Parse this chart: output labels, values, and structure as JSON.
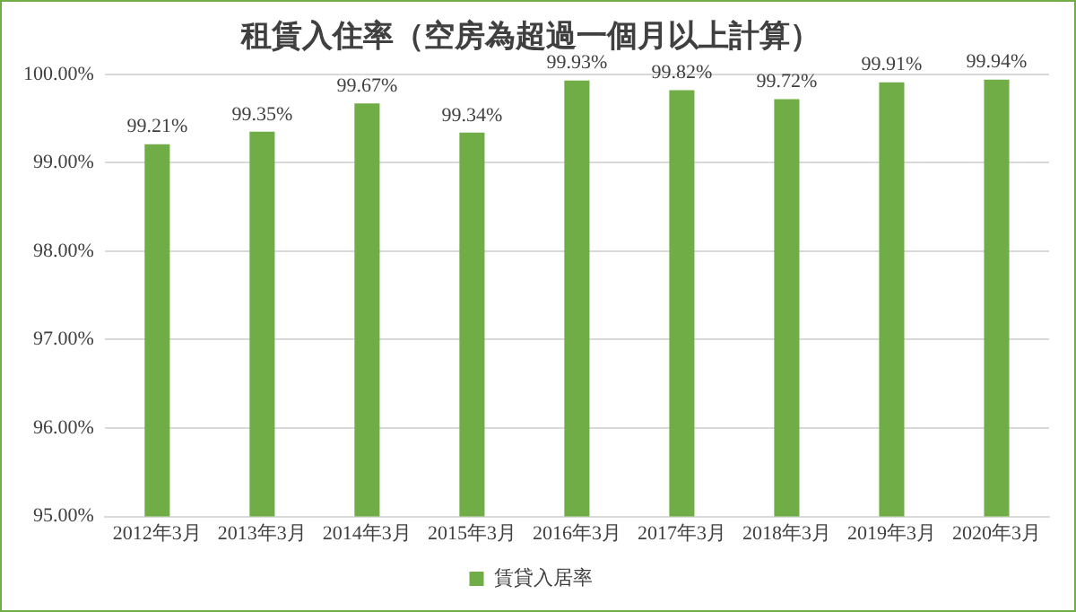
{
  "chart_data": {
    "type": "bar",
    "title": "租賃入住率（空房為超過一個月以上計算）",
    "categories": [
      "2012年3月",
      "2013年3月",
      "2014年3月",
      "2015年3月",
      "2016年3月",
      "2017年3月",
      "2018年3月",
      "2019年3月",
      "2020年3月"
    ],
    "series": [
      {
        "name": "賃貸入居率",
        "color": "#70ad47",
        "values": [
          99.21,
          99.35,
          99.67,
          99.34,
          99.93,
          99.82,
          99.72,
          99.91,
          99.94
        ],
        "value_labels": [
          "99.21%",
          "99.35%",
          "99.67%",
          "99.34%",
          "99.93%",
          "99.82%",
          "99.72%",
          "99.91%",
          "99.94%"
        ]
      }
    ],
    "ylim": [
      95,
      100
    ],
    "yticks": [
      {
        "value": 95,
        "label": "95.00%"
      },
      {
        "value": 96,
        "label": "96.00%"
      },
      {
        "value": 97,
        "label": "97.00%"
      },
      {
        "value": 98,
        "label": "98.00%"
      },
      {
        "value": 99,
        "label": "99.00%"
      },
      {
        "value": 100,
        "label": "100.00%"
      }
    ],
    "grid": "y",
    "legend": "bottom"
  }
}
